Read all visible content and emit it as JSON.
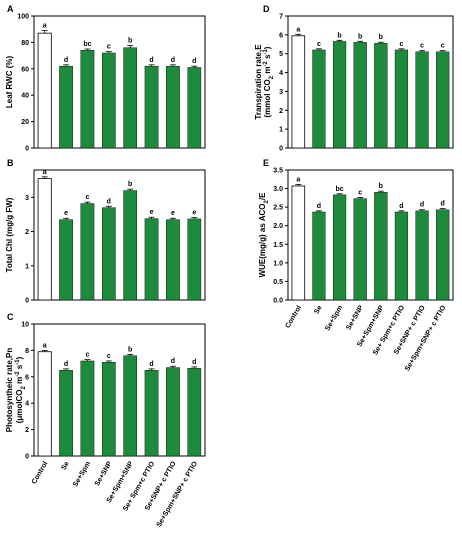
{
  "categories": [
    "Control",
    "Se",
    "Se+Spm",
    "Se+SNP",
    "Se+Spm+SNP",
    "Se+ Spm+c PTIO",
    "Se+SNP+ c PTIO",
    "Se+Spm+SNP+ c PTIO"
  ],
  "colors": {
    "control_fill": "#ffffff",
    "treatment_fill": "#1e8a3c",
    "stroke": "#000000"
  },
  "chart_data": [
    {
      "panel": "A",
      "type": "bar",
      "ylabel": "Leaf RWC (%)",
      "ylim": [
        0,
        100
      ],
      "yticks": [
        0,
        20,
        40,
        60,
        80,
        100
      ],
      "values": [
        87,
        62,
        74,
        72,
        76,
        62,
        62,
        61
      ],
      "errors": [
        2,
        1,
        1,
        1,
        1.5,
        1,
        1,
        1
      ],
      "letters": [
        "a",
        "d",
        "bc",
        "c",
        "b",
        "d",
        "d",
        "d"
      ]
    },
    {
      "panel": "B",
      "type": "bar",
      "ylabel": "Total Chl (mg/g FW)",
      "ylim": [
        0,
        3.8
      ],
      "yticks": [
        0,
        1,
        2,
        3
      ],
      "values": [
        3.55,
        2.35,
        2.82,
        2.7,
        3.2,
        2.38,
        2.35,
        2.37
      ],
      "errors": [
        0.05,
        0.04,
        0.04,
        0.04,
        0.04,
        0.04,
        0.04,
        0.04
      ],
      "letters": [
        "a",
        "e",
        "c",
        "d",
        "b",
        "e",
        "e",
        "e"
      ]
    },
    {
      "panel": "C",
      "type": "bar",
      "ylabel": "Photosyntheic rate,Pn",
      "ylabel_line2": [
        "(μmolCO",
        "2",
        " m",
        "-2",
        " s",
        "-1",
        ")"
      ],
      "ylim": [
        0,
        10
      ],
      "yticks": [
        0,
        2,
        4,
        6,
        8,
        10
      ],
      "values": [
        7.9,
        6.5,
        7.2,
        7.1,
        7.6,
        6.5,
        6.7,
        6.65
      ],
      "errors": [
        0.1,
        0.1,
        0.1,
        0.1,
        0.1,
        0.1,
        0.1,
        0.1
      ],
      "letters": [
        "a",
        "d",
        "c",
        "c",
        "b",
        "d",
        "d",
        "d"
      ]
    },
    {
      "panel": "D",
      "type": "bar",
      "ylabel": "Transpiration rate,E",
      "ylabel_line2": [
        "(mmol CO",
        "2",
        " m",
        "-2",
        " s",
        "-1",
        ")"
      ],
      "ylim": [
        0,
        7
      ],
      "yticks": [
        0,
        1,
        2,
        3,
        4,
        5,
        6,
        7
      ],
      "values": [
        5.95,
        5.2,
        5.65,
        5.6,
        5.55,
        5.2,
        5.1,
        5.1
      ],
      "errors": [
        0.08,
        0.06,
        0.06,
        0.06,
        0.06,
        0.06,
        0.06,
        0.06
      ],
      "letters": [
        "a",
        "c",
        "b",
        "b",
        "b",
        "c",
        "c",
        "c"
      ]
    },
    {
      "panel": "E",
      "type": "bar",
      "ylabel_parts": [
        "WUE(mg/g) as ACO",
        "2",
        "/E"
      ],
      "ylim": [
        0,
        3.5
      ],
      "yticks": [
        0,
        0.5,
        1,
        1.5,
        2,
        2.5,
        3,
        3.5
      ],
      "yticklabels": [
        "0.0",
        "0.5",
        "1.0",
        "1.5",
        "2.0",
        "2.5",
        "3.0",
        "3.5"
      ],
      "values": [
        3.07,
        2.37,
        2.83,
        2.73,
        2.9,
        2.37,
        2.4,
        2.43
      ],
      "errors": [
        0.04,
        0.03,
        0.03,
        0.03,
        0.03,
        0.03,
        0.03,
        0.03
      ],
      "letters": [
        "a",
        "d",
        "bc",
        "c",
        "b",
        "d",
        "d",
        "d"
      ]
    }
  ]
}
